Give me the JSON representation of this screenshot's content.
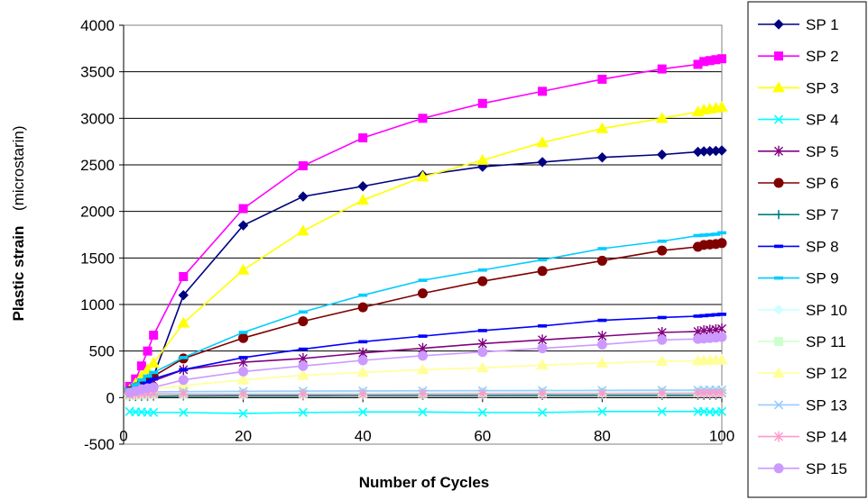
{
  "chart_data": {
    "type": "line",
    "title": "",
    "xlabel": "Number of Cycles",
    "ylabel": "Plastic strain",
    "ylabel_unit": "(microstarin)",
    "xlim": [
      0,
      100
    ],
    "ylim": [
      -500,
      4000
    ],
    "xticks": [
      0,
      20,
      40,
      60,
      80,
      100
    ],
    "yticks": [
      -500,
      0,
      500,
      1000,
      1500,
      2000,
      2500,
      3000,
      3500,
      4000
    ],
    "grid": "horizontal",
    "legend_position": "right",
    "series": [
      {
        "name": "SP 1",
        "color": "#000080",
        "marker": "diamond",
        "x": [
          1,
          2,
          3,
          4,
          5,
          10,
          20,
          30,
          40,
          50,
          60,
          70,
          80,
          90,
          96,
          97,
          98,
          99,
          100
        ],
        "y": [
          100,
          130,
          170,
          200,
          230,
          1100,
          1850,
          2160,
          2270,
          2390,
          2480,
          2530,
          2580,
          2610,
          2640,
          2645,
          2648,
          2650,
          2655
        ]
      },
      {
        "name": "SP 2",
        "color": "#FF00FF",
        "marker": "square",
        "x": [
          1,
          2,
          3,
          4,
          5,
          10,
          20,
          30,
          40,
          50,
          60,
          70,
          80,
          90,
          96,
          97,
          98,
          99,
          100
        ],
        "y": [
          120,
          200,
          340,
          500,
          670,
          1300,
          2030,
          2490,
          2790,
          3000,
          3160,
          3290,
          3420,
          3530,
          3580,
          3610,
          3620,
          3630,
          3640
        ]
      },
      {
        "name": "SP 3",
        "color": "#FFFF00",
        "marker": "triangle",
        "x": [
          1,
          2,
          3,
          4,
          5,
          10,
          20,
          30,
          40,
          50,
          60,
          70,
          80,
          90,
          96,
          97,
          98,
          99,
          100
        ],
        "y": [
          80,
          150,
          230,
          300,
          370,
          800,
          1370,
          1790,
          2120,
          2370,
          2550,
          2740,
          2890,
          3000,
          3070,
          3090,
          3100,
          3110,
          3120
        ]
      },
      {
        "name": "SP 4",
        "color": "#00FFFF",
        "marker": "x",
        "x": [
          1,
          2,
          3,
          4,
          5,
          10,
          20,
          30,
          40,
          50,
          60,
          70,
          80,
          90,
          96,
          97,
          98,
          99,
          100
        ],
        "y": [
          -150,
          -155,
          -155,
          -160,
          -160,
          -160,
          -170,
          -160,
          -155,
          -155,
          -160,
          -160,
          -150,
          -150,
          -150,
          -150,
          -155,
          -155,
          -150
        ]
      },
      {
        "name": "SP 5",
        "color": "#800080",
        "marker": "star",
        "x": [
          1,
          2,
          3,
          4,
          5,
          10,
          20,
          30,
          40,
          50,
          60,
          70,
          80,
          90,
          96,
          97,
          98,
          99,
          100
        ],
        "y": [
          60,
          90,
          120,
          150,
          180,
          300,
          380,
          420,
          480,
          530,
          580,
          620,
          660,
          700,
          710,
          720,
          725,
          730,
          740
        ]
      },
      {
        "name": "SP 6",
        "color": "#800000",
        "marker": "circle",
        "x": [
          1,
          2,
          3,
          4,
          5,
          10,
          20,
          30,
          40,
          50,
          60,
          70,
          80,
          90,
          96,
          97,
          98,
          99,
          100
        ],
        "y": [
          70,
          110,
          150,
          190,
          230,
          420,
          640,
          820,
          970,
          1120,
          1250,
          1360,
          1470,
          1580,
          1620,
          1640,
          1645,
          1650,
          1660
        ]
      },
      {
        "name": "SP 7",
        "color": "#008080",
        "marker": "plus",
        "x": [
          1,
          2,
          3,
          4,
          5,
          10,
          20,
          30,
          40,
          50,
          60,
          70,
          80,
          90,
          96,
          97,
          98,
          99,
          100
        ],
        "y": [
          10,
          12,
          14,
          15,
          16,
          18,
          20,
          20,
          22,
          22,
          22,
          23,
          24,
          24,
          25,
          25,
          25,
          25,
          25
        ]
      },
      {
        "name": "SP 8",
        "color": "#0000FF",
        "marker": "dash",
        "x": [
          1,
          2,
          3,
          4,
          5,
          10,
          20,
          30,
          40,
          50,
          60,
          70,
          80,
          90,
          96,
          97,
          98,
          99,
          100
        ],
        "y": [
          70,
          110,
          140,
          170,
          200,
          300,
          430,
          520,
          600,
          660,
          720,
          770,
          830,
          860,
          875,
          880,
          885,
          890,
          895
        ]
      },
      {
        "name": "SP 9",
        "color": "#00CCFF",
        "marker": "dash",
        "x": [
          1,
          2,
          3,
          4,
          5,
          10,
          20,
          30,
          40,
          50,
          60,
          70,
          80,
          90,
          96,
          97,
          98,
          99,
          100
        ],
        "y": [
          90,
          140,
          190,
          230,
          270,
          430,
          700,
          920,
          1100,
          1260,
          1370,
          1480,
          1600,
          1680,
          1740,
          1745,
          1750,
          1755,
          1770
        ]
      },
      {
        "name": "SP 10",
        "color": "#CCFFFF",
        "marker": "diamond",
        "x": [
          1,
          2,
          3,
          4,
          5,
          10,
          20,
          30,
          40,
          50,
          60,
          70,
          80,
          90,
          96,
          97,
          98,
          99,
          100
        ],
        "y": [
          30,
          35,
          40,
          42,
          45,
          50,
          55,
          58,
          60,
          62,
          64,
          66,
          68,
          70,
          72,
          72,
          73,
          74,
          75
        ]
      },
      {
        "name": "SP 11",
        "color": "#CCFFCC",
        "marker": "square",
        "x": [
          1,
          2,
          3,
          4,
          5,
          10,
          20,
          30,
          40,
          50,
          60,
          70,
          80,
          90,
          96,
          97,
          98,
          99,
          100
        ],
        "y": [
          20,
          25,
          28,
          30,
          32,
          35,
          38,
          40,
          42,
          44,
          46,
          48,
          50,
          52,
          53,
          54,
          54,
          55,
          55
        ]
      },
      {
        "name": "SP 12",
        "color": "#FFFF99",
        "marker": "triangle",
        "x": [
          1,
          2,
          3,
          4,
          5,
          10,
          20,
          30,
          40,
          50,
          60,
          70,
          80,
          90,
          96,
          97,
          98,
          99,
          100
        ],
        "y": [
          40,
          55,
          70,
          85,
          95,
          130,
          190,
          240,
          270,
          300,
          320,
          350,
          370,
          390,
          395,
          398,
          400,
          402,
          405
        ]
      },
      {
        "name": "SP 13",
        "color": "#99CCFF",
        "marker": "x",
        "x": [
          1,
          2,
          3,
          4,
          5,
          10,
          20,
          30,
          40,
          50,
          60,
          70,
          80,
          90,
          96,
          97,
          98,
          99,
          100
        ],
        "y": [
          40,
          50,
          55,
          60,
          62,
          65,
          68,
          70,
          72,
          74,
          75,
          76,
          78,
          80,
          80,
          81,
          82,
          82,
          83
        ]
      },
      {
        "name": "SP 14",
        "color": "#FF99CC",
        "marker": "star",
        "x": [
          1,
          2,
          3,
          4,
          5,
          10,
          20,
          30,
          40,
          50,
          60,
          70,
          80,
          90,
          96,
          97,
          98,
          99,
          100
        ],
        "y": [
          30,
          35,
          38,
          40,
          40,
          38,
          35,
          35,
          36,
          38,
          40,
          40,
          42,
          44,
          45,
          45,
          46,
          46,
          47
        ]
      },
      {
        "name": "SP 15",
        "color": "#CC99FF",
        "marker": "circle",
        "x": [
          1,
          2,
          3,
          4,
          5,
          10,
          20,
          30,
          40,
          50,
          60,
          70,
          80,
          90,
          96,
          97,
          98,
          99,
          100
        ],
        "y": [
          50,
          70,
          90,
          100,
          110,
          190,
          280,
          340,
          400,
          450,
          490,
          530,
          570,
          620,
          630,
          635,
          640,
          645,
          650
        ]
      }
    ]
  }
}
